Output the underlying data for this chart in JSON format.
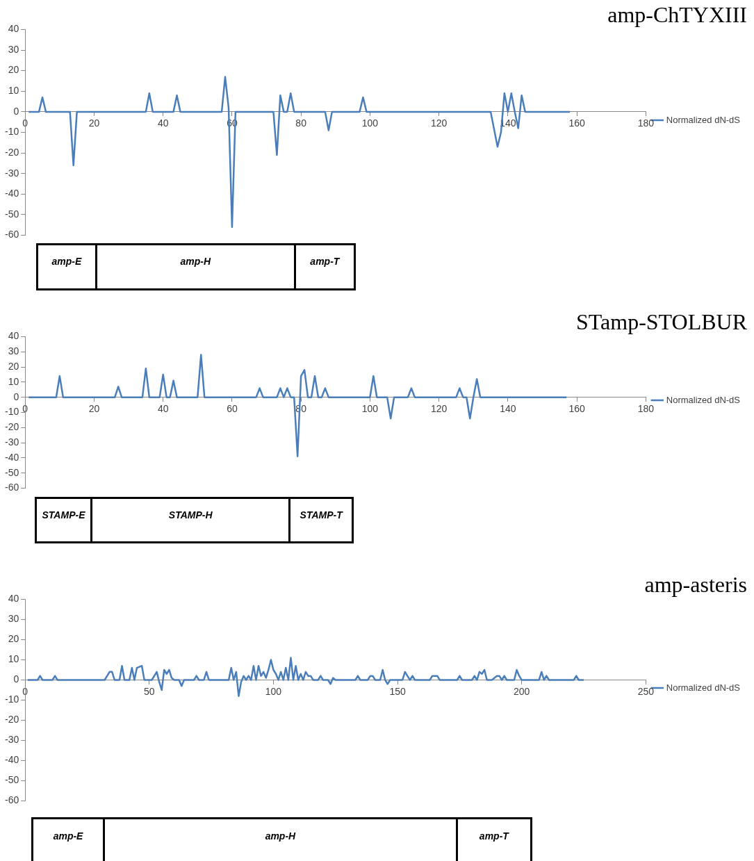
{
  "chart_data": [
    {
      "type": "line",
      "title": "amp-ChTYXIII",
      "legend": "right",
      "grid": false,
      "xlim": [
        0,
        180
      ],
      "xticks": [
        0,
        20,
        40,
        60,
        80,
        100,
        120,
        140,
        160,
        180
      ],
      "ylim": [
        -60,
        40
      ],
      "yticks": [
        -60,
        -50,
        -40,
        -30,
        -20,
        -10,
        0,
        10,
        20,
        30,
        40
      ],
      "annotations": [
        "amp-E",
        "amp-H",
        "amp-T"
      ],
      "series": [
        {
          "name": "Normalized dN-dS",
          "color": "#4a7ebb",
          "x": [
            1,
            4,
            5,
            6,
            13,
            14,
            15,
            35,
            36,
            37,
            43,
            44,
            45,
            57,
            58,
            59,
            60,
            61,
            72,
            73,
            74,
            75,
            76,
            77,
            78,
            87,
            88,
            89,
            97,
            98,
            99,
            135,
            137,
            138,
            139,
            140,
            141,
            142,
            143,
            144,
            145,
            158
          ],
          "values": [
            0,
            0,
            7,
            0,
            0,
            -26,
            0,
            0,
            9,
            0,
            0,
            8,
            0,
            0,
            17,
            2,
            -56,
            0,
            0,
            -21,
            8,
            0,
            0,
            9,
            0,
            0,
            -9,
            0,
            0,
            7,
            0,
            0,
            -17,
            -10,
            9,
            0,
            9,
            0,
            -8,
            8,
            0,
            0
          ]
        }
      ]
    },
    {
      "type": "line",
      "title": "STamp-STOLBUR",
      "legend": "right",
      "grid": false,
      "xlim": [
        0,
        180
      ],
      "xticks": [
        0,
        20,
        40,
        60,
        80,
        100,
        120,
        140,
        160,
        180
      ],
      "ylim": [
        -60,
        40
      ],
      "yticks": [
        -60,
        -50,
        -40,
        -30,
        -20,
        -10,
        0,
        10,
        20,
        30,
        40
      ],
      "annotations": [
        "STAMP-E",
        "STAMP-H",
        "STAMP-T"
      ],
      "series": [
        {
          "name": "Normalized dN-dS",
          "color": "#4a7ebb",
          "x": [
            1,
            9,
            10,
            11,
            26,
            27,
            28,
            34,
            35,
            36,
            39,
            40,
            41,
            42,
            43,
            44,
            50,
            51,
            52,
            67,
            68,
            69,
            73,
            74,
            75,
            76,
            77,
            78,
            79,
            80,
            81,
            82,
            83,
            84,
            85,
            86,
            87,
            88,
            100,
            101,
            102,
            105,
            106,
            107,
            111,
            112,
            113,
            125,
            126,
            127,
            128,
            129,
            130,
            131,
            132,
            157
          ],
          "values": [
            0,
            0,
            14,
            0,
            0,
            7,
            0,
            0,
            19,
            0,
            0,
            15,
            0,
            0,
            11,
            0,
            0,
            28,
            0,
            0,
            6,
            0,
            0,
            6,
            0,
            6,
            0,
            0,
            -39,
            14,
            18,
            0,
            0,
            14,
            0,
            0,
            6,
            0,
            0,
            14,
            0,
            0,
            -14,
            0,
            0,
            6,
            0,
            0,
            6,
            0,
            0,
            -14,
            0,
            12,
            0,
            0
          ]
        }
      ]
    },
    {
      "type": "line",
      "title": "amp-asteris",
      "legend": "right",
      "grid": false,
      "xlim": [
        0,
        250
      ],
      "xticks": [
        0,
        50,
        100,
        150,
        200,
        250
      ],
      "ylim": [
        -60,
        40
      ],
      "yticks": [
        -60,
        -50,
        -40,
        -30,
        -20,
        -10,
        0,
        10,
        20,
        30,
        40
      ],
      "annotations": [
        "amp-E",
        "amp-H",
        "amp-T"
      ],
      "series": [
        {
          "name": "Normalized dN-dS",
          "color": "#4a7ebb",
          "x": [
            1,
            5,
            6,
            7,
            11,
            12,
            13,
            32,
            34,
            35,
            36,
            38,
            39,
            40,
            42,
            43,
            44,
            45,
            47,
            48,
            51,
            53,
            54,
            55,
            56,
            57,
            58,
            59,
            60,
            62,
            63,
            64,
            68,
            69,
            70,
            72,
            73,
            74,
            82,
            83,
            84,
            85,
            86,
            87,
            88,
            89,
            90,
            91,
            92,
            93,
            94,
            95,
            96,
            97,
            98,
            99,
            100,
            101,
            102,
            103,
            104,
            105,
            106,
            107,
            108,
            109,
            110,
            111,
            112,
            113,
            114,
            115,
            116,
            118,
            119,
            120,
            122,
            123,
            124,
            125,
            133,
            134,
            135,
            138,
            139,
            140,
            141,
            143,
            144,
            145,
            146,
            147,
            152,
            153,
            154,
            155,
            156,
            157,
            163,
            164,
            166,
            167,
            174,
            175,
            176,
            180,
            181,
            182,
            183,
            184,
            185,
            186,
            188,
            190,
            191,
            192,
            193,
            194,
            197,
            198,
            199,
            200,
            207,
            208,
            209,
            210,
            211,
            221,
            222,
            223,
            225
          ],
          "values": [
            0,
            0,
            2,
            0,
            0,
            2,
            0,
            0,
            4,
            4,
            0,
            0,
            7,
            0,
            0,
            6,
            0,
            6,
            7,
            0,
            0,
            4,
            -1,
            -5,
            5,
            3,
            5,
            1,
            0,
            0,
            -3,
            0,
            0,
            2,
            0,
            0,
            4,
            0,
            0,
            6,
            0,
            4,
            -8,
            -1,
            2,
            0,
            2,
            0,
            7,
            0,
            7,
            2,
            4,
            1,
            5,
            10,
            5,
            3,
            0,
            4,
            0,
            6,
            0,
            11,
            0,
            7,
            0,
            3,
            0,
            4,
            2,
            2,
            0,
            0,
            2,
            0,
            0,
            -2,
            1,
            0,
            0,
            2,
            0,
            0,
            2,
            2,
            0,
            0,
            5,
            0,
            -2,
            0,
            0,
            4,
            2,
            0,
            2,
            0,
            0,
            2,
            2,
            0,
            0,
            2,
            0,
            0,
            2,
            0,
            4,
            3,
            5,
            0,
            0,
            2,
            2,
            0,
            2,
            0,
            0,
            5,
            2,
            0,
            0,
            4,
            0,
            2,
            0,
            0,
            2,
            0,
            0
          ]
        }
      ]
    }
  ]
}
